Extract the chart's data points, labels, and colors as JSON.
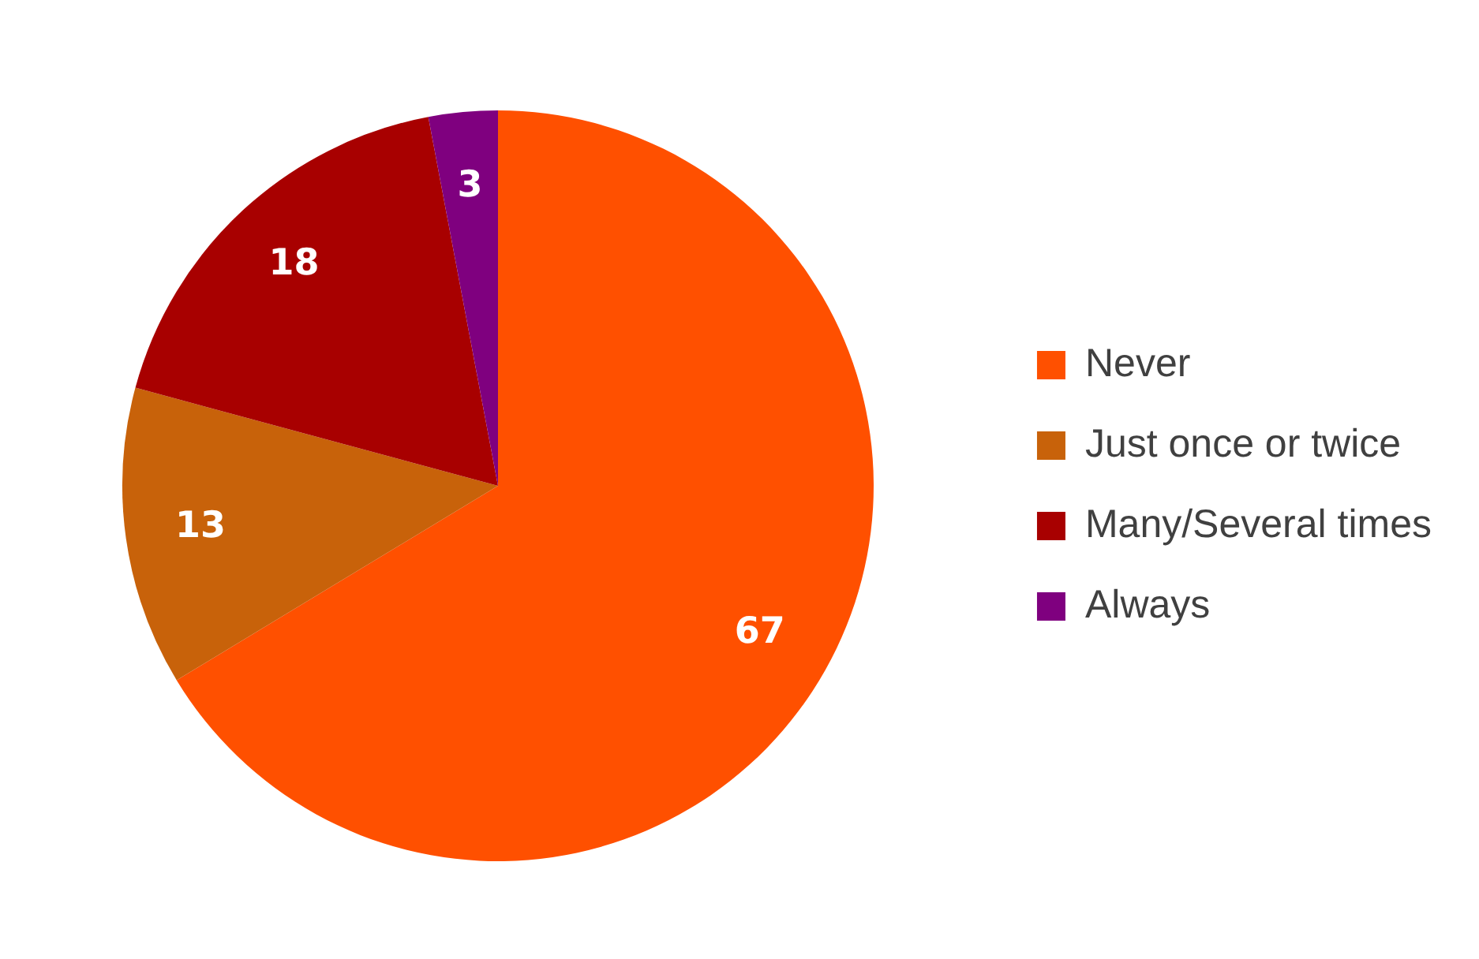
{
  "chart_data": {
    "type": "pie",
    "categories": [
      "Never",
      "Just once or twice",
      "Many/Several times",
      "Always"
    ],
    "values": [
      67,
      13,
      18,
      3
    ],
    "colors": [
      "#ff5000",
      "#c8620a",
      "#a80000",
      "#7f007f"
    ],
    "data_labels": true,
    "legend": "right"
  }
}
